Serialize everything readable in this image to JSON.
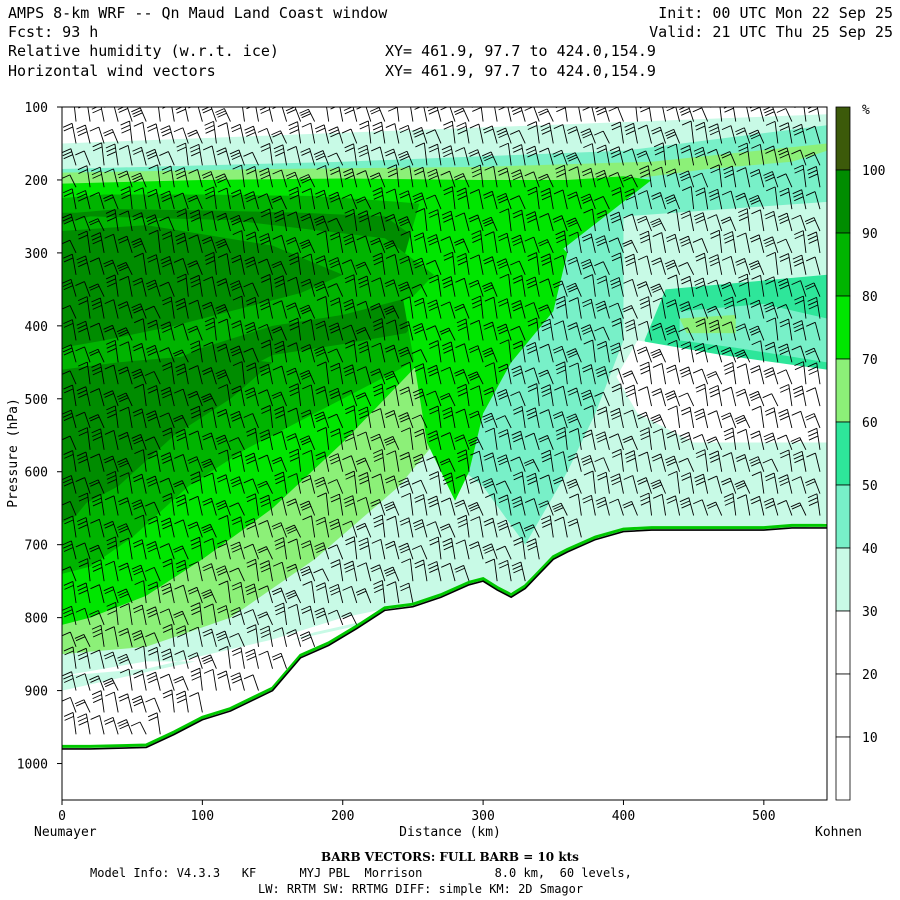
{
  "header": {
    "title": "AMPS 8-km WRF -- Qn Maud Land Coast window",
    "init": "Init: 00 UTC Mon 22 Sep 25",
    "fcst": "Fcst:   93 h",
    "valid": "Valid: 21 UTC Thu 25 Sep 25",
    "field1": "Relative humidity (w.r.t. ice)",
    "field1_xy": "XY= 461.9, 97.7 to 424.0,154.9",
    "field2": "Horizontal wind vectors",
    "field2_xy": "XY= 461.9, 97.7 to 424.0,154.9"
  },
  "footer": {
    "barb": "BARB VECTORS:  FULL BARB = 10 kts",
    "model1": "Model Info: V4.3.3   KF      MYJ PBL  Morrison          8.0 km,  60 levels,",
    "model2": "LW: RRTM SW: RRTMG   DIFF: simple KM: 2D Smagor"
  },
  "colors": {
    "levels": [
      "#ffffff",
      "#ffffff",
      "#ffffff",
      "#c8fae6",
      "#78f0c8",
      "#2ee69a",
      "#8cf078",
      "#00e600",
      "#00b400",
      "#008c00",
      "#3c5a0a"
    ],
    "terrain": "#000000",
    "terrain_green": "#00c800"
  },
  "chart_data": {
    "type": "heatmap",
    "xlabel": "Distance (km)",
    "ylabel": "Pressure (hPa)",
    "x_start_label": "Neumayer",
    "x_end_label": "Kohnen",
    "xlim": [
      0,
      545
    ],
    "ylim": [
      1050,
      100
    ],
    "x_ticks": [
      0,
      100,
      200,
      300,
      400,
      500
    ],
    "y_ticks": [
      100,
      200,
      300,
      400,
      500,
      600,
      700,
      800,
      900,
      1000
    ],
    "colorbar": {
      "unit": "%",
      "boundaries": [
        10,
        20,
        30,
        40,
        50,
        60,
        70,
        80,
        90,
        100
      ]
    },
    "terrain_pressure": {
      "x": [
        0,
        20,
        60,
        80,
        100,
        120,
        150,
        170,
        190,
        210,
        230,
        250,
        270,
        290,
        300,
        310,
        320,
        330,
        340,
        350,
        360,
        380,
        400,
        420,
        450,
        480,
        500,
        520,
        545
      ],
      "p": [
        980,
        980,
        978,
        960,
        940,
        928,
        900,
        855,
        838,
        815,
        790,
        785,
        772,
        755,
        750,
        762,
        772,
        760,
        740,
        720,
        710,
        693,
        682,
        680,
        680,
        680,
        680,
        677,
        677
      ]
    },
    "rh_levels": {
      "100": [
        [
          0,
          240
        ],
        [
          20,
          235
        ],
        [
          60,
          230
        ],
        [
          100,
          235
        ],
        [
          150,
          240
        ],
        [
          200,
          230
        ],
        [
          250,
          240
        ],
        [
          300,
          258
        ],
        [
          320,
          270
        ],
        [
          350,
          280
        ]
      ],
      "note": ""
    },
    "rh_fields": [
      {
        "value": 95,
        "x": [
          0,
          10,
          40,
          110,
          170,
          230,
          260,
          270,
          245,
          200,
          150,
          120,
          80,
          40,
          10,
          0
        ],
        "p": [
          245,
          245,
          240,
          242,
          245,
          250,
          290,
          360,
          410,
          425,
          440,
          470,
          520,
          590,
          660,
          670
        ]
      },
      {
        "value": 85,
        "x": [
          0,
          30,
          100,
          180,
          240,
          300,
          330,
          320,
          290,
          240,
          180,
          130,
          90,
          50,
          20,
          0
        ],
        "p": [
          225,
          220,
          220,
          222,
          230,
          240,
          265,
          330,
          400,
          460,
          520,
          570,
          620,
          690,
          730,
          740
        ]
      },
      {
        "value": 75,
        "x": [
          0,
          100,
          200,
          300,
          360,
          400,
          420,
          380,
          340,
          300,
          250,
          200,
          150,
          100,
          60,
          20,
          0
        ],
        "p": [
          205,
          200,
          198,
          200,
          200,
          195,
          200,
          260,
          320,
          380,
          460,
          560,
          650,
          720,
          770,
          800,
          810
        ]
      },
      {
        "value": 65,
        "x": [
          0,
          150,
          300,
          420,
          545,
          545,
          520,
          460,
          400,
          360,
          340,
          300,
          240,
          180,
          120,
          60,
          0
        ],
        "p": [
          190,
          185,
          182,
          175,
          150,
          160,
          175,
          185,
          200,
          250,
          330,
          480,
          620,
          720,
          800,
          840,
          850
        ]
      }
    ],
    "wind_barbs_cols_km": [
      10,
      20,
      30,
      40,
      50,
      60,
      70,
      80,
      90,
      100,
      110,
      120,
      130,
      140,
      150,
      160,
      170,
      180,
      190,
      200,
      210,
      220,
      230,
      240,
      250,
      260,
      270,
      280,
      290,
      300,
      310,
      320,
      330,
      340,
      350,
      360,
      370,
      380,
      390,
      400,
      410,
      420,
      430,
      440,
      450,
      460,
      470,
      480,
      490,
      500,
      510,
      520,
      530,
      540
    ],
    "wind_barbs_levels_hpa": [
      120,
      150,
      180,
      210,
      240,
      270,
      300,
      330,
      360,
      390,
      420,
      450,
      480,
      510,
      540,
      570,
      600,
      630,
      660,
      690,
      720,
      750,
      780,
      810,
      840,
      870,
      900,
      930,
      960,
      990
    ]
  }
}
